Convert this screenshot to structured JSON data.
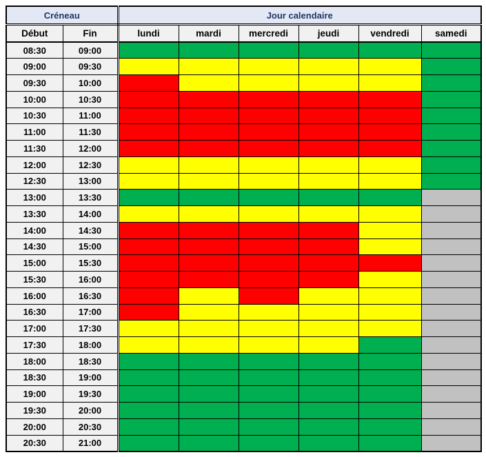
{
  "header": {
    "creneau_label": "Créneau",
    "jour_label": "Jour calendaire",
    "debut_label": "Début",
    "fin_label": "Fin"
  },
  "styles": {
    "group_header_bg": "#e4e7f4",
    "group_header_text": "#1f3864",
    "subheader_bg": "#f1f1f1",
    "time_cell_bg": "#f1f1f1",
    "border_color": "#000000"
  },
  "chart_data": {
    "type": "heatmap",
    "columns": [
      "lundi",
      "mardi",
      "mercredi",
      "jeudi",
      "vendredi",
      "samedi"
    ],
    "rows": [
      {
        "start": "08:30",
        "end": "09:00"
      },
      {
        "start": "09:00",
        "end": "09:30"
      },
      {
        "start": "09:30",
        "end": "10:00"
      },
      {
        "start": "10:00",
        "end": "10:30"
      },
      {
        "start": "10:30",
        "end": "11:00"
      },
      {
        "start": "11:00",
        "end": "11:30"
      },
      {
        "start": "11:30",
        "end": "12:00"
      },
      {
        "start": "12:00",
        "end": "12:30"
      },
      {
        "start": "12:30",
        "end": "13:00"
      },
      {
        "start": "13:00",
        "end": "13:30"
      },
      {
        "start": "13:30",
        "end": "14:00"
      },
      {
        "start": "14:00",
        "end": "14:30"
      },
      {
        "start": "14:30",
        "end": "15:00"
      },
      {
        "start": "15:00",
        "end": "15:30"
      },
      {
        "start": "15:30",
        "end": "16:00"
      },
      {
        "start": "16:00",
        "end": "16:30"
      },
      {
        "start": "16:30",
        "end": "17:00"
      },
      {
        "start": "17:00",
        "end": "17:30"
      },
      {
        "start": "17:30",
        "end": "18:00"
      },
      {
        "start": "18:00",
        "end": "18:30"
      },
      {
        "start": "18:30",
        "end": "19:00"
      },
      {
        "start": "19:00",
        "end": "19:30"
      },
      {
        "start": "19:30",
        "end": "20:00"
      },
      {
        "start": "20:00",
        "end": "20:30"
      },
      {
        "start": "20:30",
        "end": "21:00"
      }
    ],
    "values": [
      [
        "green",
        "green",
        "green",
        "green",
        "green",
        "green"
      ],
      [
        "yellow",
        "yellow",
        "yellow",
        "yellow",
        "yellow",
        "green"
      ],
      [
        "red",
        "yellow",
        "yellow",
        "yellow",
        "yellow",
        "green"
      ],
      [
        "red",
        "red",
        "red",
        "red",
        "red",
        "green"
      ],
      [
        "red",
        "red",
        "red",
        "red",
        "red",
        "green"
      ],
      [
        "red",
        "red",
        "red",
        "red",
        "red",
        "green"
      ],
      [
        "red",
        "red",
        "red",
        "red",
        "red",
        "green"
      ],
      [
        "yellow",
        "yellow",
        "yellow",
        "yellow",
        "yellow",
        "green"
      ],
      [
        "yellow",
        "yellow",
        "yellow",
        "yellow",
        "yellow",
        "green"
      ],
      [
        "green",
        "green",
        "green",
        "green",
        "green",
        "gray"
      ],
      [
        "yellow",
        "yellow",
        "yellow",
        "yellow",
        "yellow",
        "gray"
      ],
      [
        "red",
        "red",
        "red",
        "red",
        "yellow",
        "gray"
      ],
      [
        "red",
        "red",
        "red",
        "red",
        "yellow",
        "gray"
      ],
      [
        "red",
        "red",
        "red",
        "red",
        "red",
        "gray"
      ],
      [
        "red",
        "red",
        "red",
        "red",
        "yellow",
        "gray"
      ],
      [
        "red",
        "yellow",
        "red",
        "yellow",
        "yellow",
        "gray"
      ],
      [
        "red",
        "yellow",
        "yellow",
        "yellow",
        "yellow",
        "gray"
      ],
      [
        "yellow",
        "yellow",
        "yellow",
        "yellow",
        "yellow",
        "gray"
      ],
      [
        "yellow",
        "yellow",
        "yellow",
        "yellow",
        "green",
        "gray"
      ],
      [
        "green",
        "green",
        "green",
        "green",
        "green",
        "gray"
      ],
      [
        "green",
        "green",
        "green",
        "green",
        "green",
        "gray"
      ],
      [
        "green",
        "green",
        "green",
        "green",
        "green",
        "gray"
      ],
      [
        "green",
        "green",
        "green",
        "green",
        "green",
        "gray"
      ],
      [
        "green",
        "green",
        "green",
        "green",
        "green",
        "gray"
      ],
      [
        "green",
        "green",
        "green",
        "green",
        "green",
        "gray"
      ]
    ],
    "color_legend": {
      "green": "#00B050",
      "yellow": "#FFFF00",
      "red": "#FF0000",
      "gray": "#C1C1C1"
    }
  }
}
